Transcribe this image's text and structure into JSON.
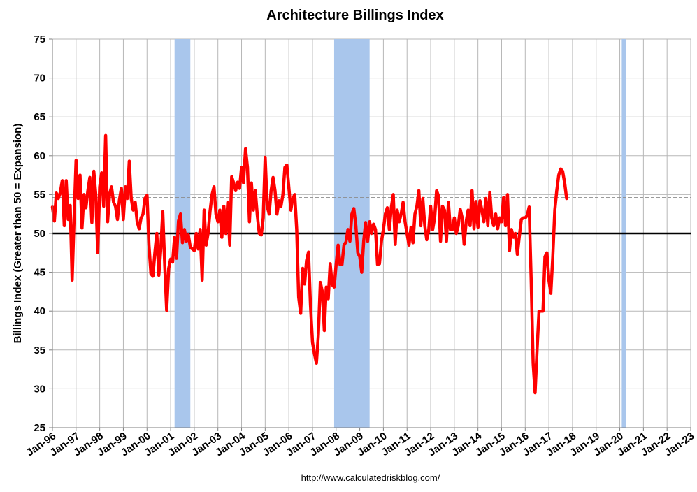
{
  "chart_data": {
    "type": "line",
    "title": "Architecture Billings Index",
    "xlabel": "",
    "ylabel": "Billings Index (Greater than 50 = Expansion)",
    "ylim": [
      25,
      75
    ],
    "yticks": [
      25,
      30,
      35,
      40,
      45,
      50,
      55,
      60,
      65,
      70,
      75
    ],
    "xlim": [
      "1996-01",
      "2023-01"
    ],
    "xticks": [
      "Jan-96",
      "Jan-97",
      "Jan-98",
      "Jan-99",
      "Jan-00",
      "Jan-01",
      "Jan-02",
      "Jan-03",
      "Jan-04",
      "Jan-05",
      "Jan-06",
      "Jan-07",
      "Jan-08",
      "Jan-09",
      "Jan-10",
      "Jan-11",
      "Jan-12",
      "Jan-13",
      "Jan-14",
      "Jan-15",
      "Jan-16",
      "Jan-17",
      "Jan-18",
      "Jan-19",
      "Jan-20",
      "Jan-21",
      "Jan-22",
      "Jan-23"
    ],
    "grid": true,
    "legend": "none",
    "colors": {
      "series": "#ff0000",
      "recession": "#a9c6ec",
      "grid": "#b7b7b7",
      "baseline": "#000000",
      "reference": "#8c8c8c"
    },
    "reference_lines": [
      {
        "y": 50,
        "style": "solid"
      },
      {
        "y": 54.6,
        "style": "dashed"
      }
    ],
    "recessions": [
      {
        "start": "2001-03",
        "end": "2001-11"
      },
      {
        "start": "2007-12",
        "end": "2009-06"
      },
      {
        "start": "2020-02",
        "end": "2020-04"
      }
    ],
    "series": [
      {
        "values": [
          [
            "1996-01",
            53.4
          ],
          [
            "1996-02",
            51.6
          ],
          [
            "1996-03",
            55.2
          ],
          [
            "1996-04",
            54.5
          ],
          [
            "1996-05",
            55.3
          ],
          [
            "1996-06",
            56.8
          ],
          [
            "1996-07",
            51.0
          ],
          [
            "1996-08",
            56.8
          ],
          [
            "1996-09",
            51.8
          ],
          [
            "1996-10",
            53.6
          ],
          [
            "1996-11",
            44.0
          ],
          [
            "1996-12",
            52.0
          ],
          [
            "1997-01",
            59.4
          ],
          [
            "1997-02",
            54.5
          ],
          [
            "1997-03",
            57.5
          ],
          [
            "1997-04",
            50.7
          ],
          [
            "1997-05",
            55.0
          ],
          [
            "1997-06",
            53.3
          ],
          [
            "1997-07",
            55.5
          ],
          [
            "1997-08",
            57.2
          ],
          [
            "1997-09",
            51.4
          ],
          [
            "1997-10",
            58.0
          ],
          [
            "1997-11",
            55.0
          ],
          [
            "1997-12",
            47.5
          ],
          [
            "1998-01",
            56.0
          ],
          [
            "1998-02",
            57.8
          ],
          [
            "1998-03",
            53.5
          ],
          [
            "1998-04",
            62.6
          ],
          [
            "1998-05",
            51.5
          ],
          [
            "1998-06",
            55.0
          ],
          [
            "1998-07",
            56.0
          ],
          [
            "1998-08",
            54.0
          ],
          [
            "1998-09",
            53.5
          ],
          [
            "1998-10",
            51.8
          ],
          [
            "1998-11",
            54.3
          ],
          [
            "1998-12",
            55.8
          ],
          [
            "1999-01",
            51.8
          ],
          [
            "1999-02",
            56.0
          ],
          [
            "1999-03",
            54.5
          ],
          [
            "1999-04",
            59.3
          ],
          [
            "1999-05",
            54.5
          ],
          [
            "1999-06",
            53.0
          ],
          [
            "1999-07",
            54.0
          ],
          [
            "1999-08",
            51.5
          ],
          [
            "1999-09",
            50.6
          ],
          [
            "1999-10",
            52.0
          ],
          [
            "1999-11",
            52.5
          ],
          [
            "1999-12",
            54.5
          ],
          [
            "2000-01",
            54.9
          ],
          [
            "2000-02",
            48.5
          ],
          [
            "2000-03",
            44.8
          ],
          [
            "2000-04",
            44.5
          ],
          [
            "2000-05",
            47.5
          ],
          [
            "2000-06",
            50.0
          ],
          [
            "2000-07",
            44.6
          ],
          [
            "2000-08",
            48.0
          ],
          [
            "2000-09",
            52.8
          ],
          [
            "2000-10",
            46.0
          ],
          [
            "2000-11",
            40.1
          ],
          [
            "2000-12",
            45.5
          ],
          [
            "2001-01",
            46.7
          ],
          [
            "2001-02",
            46.3
          ],
          [
            "2001-03",
            49.5
          ],
          [
            "2001-04",
            46.8
          ],
          [
            "2001-05",
            51.6
          ],
          [
            "2001-06",
            52.5
          ],
          [
            "2001-07",
            48.8
          ],
          [
            "2001-08",
            50.5
          ],
          [
            "2001-09",
            49.0
          ],
          [
            "2001-10",
            49.8
          ],
          [
            "2001-11",
            48.2
          ],
          [
            "2001-12",
            48.0
          ],
          [
            "2002-01",
            47.8
          ],
          [
            "2002-02",
            50.0
          ],
          [
            "2002-03",
            48.0
          ],
          [
            "2002-04",
            50.5
          ],
          [
            "2002-05",
            44.0
          ],
          [
            "2002-06",
            53.0
          ],
          [
            "2002-07",
            48.5
          ],
          [
            "2002-08",
            50.0
          ],
          [
            "2002-09",
            52.8
          ],
          [
            "2002-10",
            55.0
          ],
          [
            "2002-11",
            56.0
          ],
          [
            "2002-12",
            52.5
          ],
          [
            "2003-01",
            51.5
          ],
          [
            "2003-02",
            53.0
          ],
          [
            "2003-03",
            49.5
          ],
          [
            "2003-04",
            53.5
          ],
          [
            "2003-05",
            50.0
          ],
          [
            "2003-06",
            54.0
          ],
          [
            "2003-07",
            48.5
          ],
          [
            "2003-08",
            57.3
          ],
          [
            "2003-09",
            56.5
          ],
          [
            "2003-10",
            55.5
          ],
          [
            "2003-11",
            56.6
          ],
          [
            "2003-12",
            55.8
          ],
          [
            "2004-01",
            58.5
          ],
          [
            "2004-02",
            56.5
          ],
          [
            "2004-03",
            60.9
          ],
          [
            "2004-04",
            58.5
          ],
          [
            "2004-05",
            51.5
          ],
          [
            "2004-06",
            56.5
          ],
          [
            "2004-07",
            53.0
          ],
          [
            "2004-08",
            55.5
          ],
          [
            "2004-09",
            52.3
          ],
          [
            "2004-10",
            50.0
          ],
          [
            "2004-11",
            49.8
          ],
          [
            "2004-12",
            52.0
          ],
          [
            "2005-01",
            59.8
          ],
          [
            "2005-02",
            53.5
          ],
          [
            "2005-03",
            52.5
          ],
          [
            "2005-04",
            55.5
          ],
          [
            "2005-05",
            57.2
          ],
          [
            "2005-06",
            55.5
          ],
          [
            "2005-07",
            52.5
          ],
          [
            "2005-08",
            54.2
          ],
          [
            "2005-09",
            53.5
          ],
          [
            "2005-10",
            55.0
          ],
          [
            "2005-11",
            58.5
          ],
          [
            "2005-12",
            58.8
          ],
          [
            "2006-01",
            56.0
          ],
          [
            "2006-02",
            53.0
          ],
          [
            "2006-03",
            54.5
          ],
          [
            "2006-04",
            55.0
          ],
          [
            "2006-05",
            50.5
          ],
          [
            "2006-06",
            41.8
          ],
          [
            "2006-07",
            39.7
          ],
          [
            "2006-08",
            45.5
          ],
          [
            "2006-09",
            43.5
          ],
          [
            "2006-10",
            46.5
          ],
          [
            "2006-11",
            47.6
          ],
          [
            "2006-12",
            40.8
          ],
          [
            "2007-01",
            36.0
          ],
          [
            "2007-02",
            34.5
          ],
          [
            "2007-03",
            33.3
          ],
          [
            "2007-04",
            37.0
          ],
          [
            "2007-05",
            43.7
          ],
          [
            "2007-06",
            42.5
          ],
          [
            "2007-07",
            37.5
          ],
          [
            "2007-08",
            43.1
          ],
          [
            "2007-09",
            41.6
          ],
          [
            "2007-10",
            46.1
          ],
          [
            "2007-11",
            43.4
          ],
          [
            "2007-12",
            43.1
          ],
          [
            "2008-01",
            46.0
          ],
          [
            "2008-02",
            48.5
          ],
          [
            "2008-03",
            46.0
          ],
          [
            "2008-04",
            46.0
          ],
          [
            "2008-05",
            48.5
          ],
          [
            "2008-06",
            48.9
          ],
          [
            "2008-07",
            50.5
          ],
          [
            "2008-08",
            49.0
          ],
          [
            "2008-09",
            52.5
          ],
          [
            "2008-10",
            53.2
          ],
          [
            "2008-11",
            51.0
          ],
          [
            "2008-12",
            47.5
          ],
          [
            "2009-01",
            47.0
          ],
          [
            "2009-02",
            45.0
          ],
          [
            "2009-03",
            49.0
          ],
          [
            "2009-04",
            51.4
          ],
          [
            "2009-05",
            49.0
          ],
          [
            "2009-06",
            51.5
          ],
          [
            "2009-07",
            50.0
          ],
          [
            "2009-08",
            51.2
          ],
          [
            "2009-09",
            50.5
          ],
          [
            "2009-10",
            46.0
          ],
          [
            "2009-11",
            46.1
          ],
          [
            "2009-12",
            49.0
          ],
          [
            "2010-01",
            50.5
          ],
          [
            "2010-02",
            52.5
          ],
          [
            "2010-03",
            53.3
          ],
          [
            "2010-04",
            50.5
          ],
          [
            "2010-05",
            53.3
          ],
          [
            "2010-06",
            55.0
          ],
          [
            "2010-07",
            48.6
          ],
          [
            "2010-08",
            53.0
          ],
          [
            "2010-09",
            51.5
          ],
          [
            "2010-10",
            52.5
          ],
          [
            "2010-11",
            54.0
          ],
          [
            "2010-12",
            51.5
          ],
          [
            "2011-01",
            50.0
          ],
          [
            "2011-02",
            48.5
          ],
          [
            "2011-03",
            50.8
          ],
          [
            "2011-04",
            48.8
          ],
          [
            "2011-05",
            52.5
          ],
          [
            "2011-06",
            53.5
          ],
          [
            "2011-07",
            55.5
          ],
          [
            "2011-08",
            51.0
          ],
          [
            "2011-09",
            54.5
          ],
          [
            "2011-10",
            51.0
          ],
          [
            "2011-11",
            49.2
          ],
          [
            "2011-12",
            50.4
          ],
          [
            "2012-01",
            53.5
          ],
          [
            "2012-02",
            50.5
          ],
          [
            "2012-03",
            52.0
          ],
          [
            "2012-04",
            55.5
          ],
          [
            "2012-05",
            54.8
          ],
          [
            "2012-06",
            49.0
          ],
          [
            "2012-07",
            53.5
          ],
          [
            "2012-08",
            53.0
          ],
          [
            "2012-09",
            49.0
          ],
          [
            "2012-10",
            54.0
          ],
          [
            "2012-11",
            50.5
          ],
          [
            "2012-12",
            50.5
          ],
          [
            "2013-01",
            52.0
          ],
          [
            "2013-02",
            50.0
          ],
          [
            "2013-03",
            51.0
          ],
          [
            "2013-04",
            53.1
          ],
          [
            "2013-05",
            52.0
          ],
          [
            "2013-06",
            48.6
          ],
          [
            "2013-07",
            51.5
          ],
          [
            "2013-08",
            53.0
          ],
          [
            "2013-09",
            51.0
          ],
          [
            "2013-10",
            55.5
          ],
          [
            "2013-11",
            50.6
          ],
          [
            "2013-12",
            54.1
          ],
          [
            "2014-01",
            50.8
          ],
          [
            "2014-02",
            54.2
          ],
          [
            "2014-03",
            53.0
          ],
          [
            "2014-04",
            51.5
          ],
          [
            "2014-05",
            54.5
          ],
          [
            "2014-06",
            51.0
          ],
          [
            "2014-07",
            55.3
          ],
          [
            "2014-08",
            52.0
          ],
          [
            "2014-09",
            51.0
          ],
          [
            "2014-10",
            52.5
          ],
          [
            "2014-11",
            50.6
          ],
          [
            "2014-12",
            52.0
          ],
          [
            "2015-01",
            51.5
          ],
          [
            "2015-02",
            54.6
          ],
          [
            "2015-03",
            51.0
          ],
          [
            "2015-04",
            55.0
          ],
          [
            "2015-05",
            47.8
          ],
          [
            "2015-06",
            50.5
          ],
          [
            "2015-07",
            49.5
          ],
          [
            "2015-08",
            50.0
          ],
          [
            "2015-09",
            47.3
          ],
          [
            "2015-10",
            49.6
          ],
          [
            "2015-11",
            51.8
          ],
          [
            "2015-12",
            52.0
          ],
          [
            "2016-01",
            52.0
          ],
          [
            "2016-02",
            52.3
          ],
          [
            "2016-03",
            53.4
          ],
          [
            "2016-04",
            44.0
          ],
          [
            "2016-05",
            33.3
          ],
          [
            "2016-06",
            29.5
          ],
          [
            "2016-07",
            35.0
          ],
          [
            "2016-08",
            40.0
          ],
          [
            "2016-09",
            40.0
          ],
          [
            "2016-10",
            40.0
          ],
          [
            "2016-11",
            47.0
          ],
          [
            "2016-12",
            47.5
          ],
          [
            "2017-01",
            44.0
          ],
          [
            "2017-02",
            42.3
          ],
          [
            "2017-03",
            47.0
          ],
          [
            "2017-04",
            53.0
          ],
          [
            "2017-05",
            55.5
          ],
          [
            "2017-06",
            57.5
          ],
          [
            "2017-07",
            58.3
          ],
          [
            "2017-08",
            58.0
          ],
          [
            "2017-09",
            56.5
          ],
          [
            "2017-10",
            54.5
          ]
        ]
      }
    ]
  },
  "source_url": "http://www.calculatedriskblog.com/"
}
